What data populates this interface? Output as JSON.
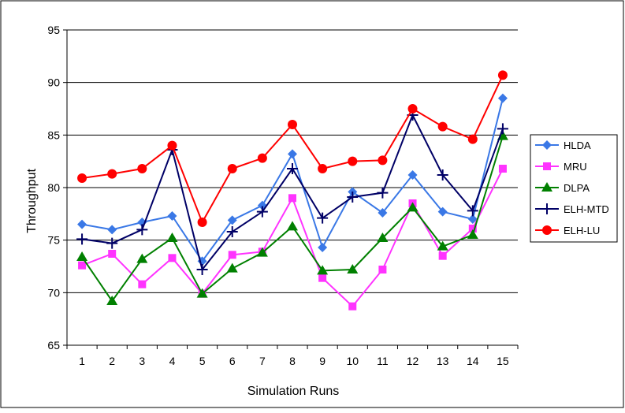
{
  "chart_data": {
    "type": "line",
    "title": "",
    "xlabel": "Simulation Runs",
    "ylabel": "Throughput",
    "categories": [
      "1",
      "2",
      "3",
      "4",
      "5",
      "6",
      "7",
      "8",
      "9",
      "10",
      "11",
      "12",
      "13",
      "14",
      "15"
    ],
    "ylim": [
      65,
      95
    ],
    "yticks": [
      65,
      70,
      75,
      80,
      85,
      90,
      95
    ],
    "grid": "horizontal",
    "legend_position": "right",
    "series": [
      {
        "name": "HLDA",
        "color": "#3a78e6",
        "marker": "diamond",
        "values": [
          76.5,
          76.0,
          76.7,
          77.3,
          73.0,
          76.9,
          78.3,
          83.2,
          74.3,
          79.6,
          77.6,
          81.2,
          77.7,
          77.0,
          88.5
        ]
      },
      {
        "name": "MRU",
        "color": "#ff33ff",
        "marker": "square",
        "values": [
          72.6,
          73.7,
          70.8,
          73.3,
          69.9,
          73.6,
          73.9,
          79.0,
          71.4,
          68.7,
          72.2,
          78.5,
          73.5,
          76.1,
          81.8
        ]
      },
      {
        "name": "DLPA",
        "color": "#008000",
        "marker": "triangle",
        "values": [
          73.4,
          69.2,
          73.2,
          75.2,
          69.9,
          72.3,
          73.8,
          76.3,
          72.1,
          72.2,
          75.2,
          78.1,
          74.4,
          75.5,
          84.9
        ]
      },
      {
        "name": "ELH-MTD",
        "color": "#000066",
        "marker": "plus",
        "values": [
          75.1,
          74.7,
          76.0,
          83.6,
          72.2,
          75.8,
          77.7,
          81.8,
          77.1,
          79.1,
          79.5,
          86.9,
          81.2,
          77.8,
          85.6
        ]
      },
      {
        "name": "ELH-LU",
        "color": "#ff0000",
        "marker": "circle",
        "values": [
          80.9,
          81.3,
          81.8,
          84.0,
          76.7,
          81.8,
          82.8,
          86.0,
          81.8,
          82.5,
          82.6,
          87.5,
          85.8,
          84.6,
          90.7
        ]
      }
    ]
  }
}
